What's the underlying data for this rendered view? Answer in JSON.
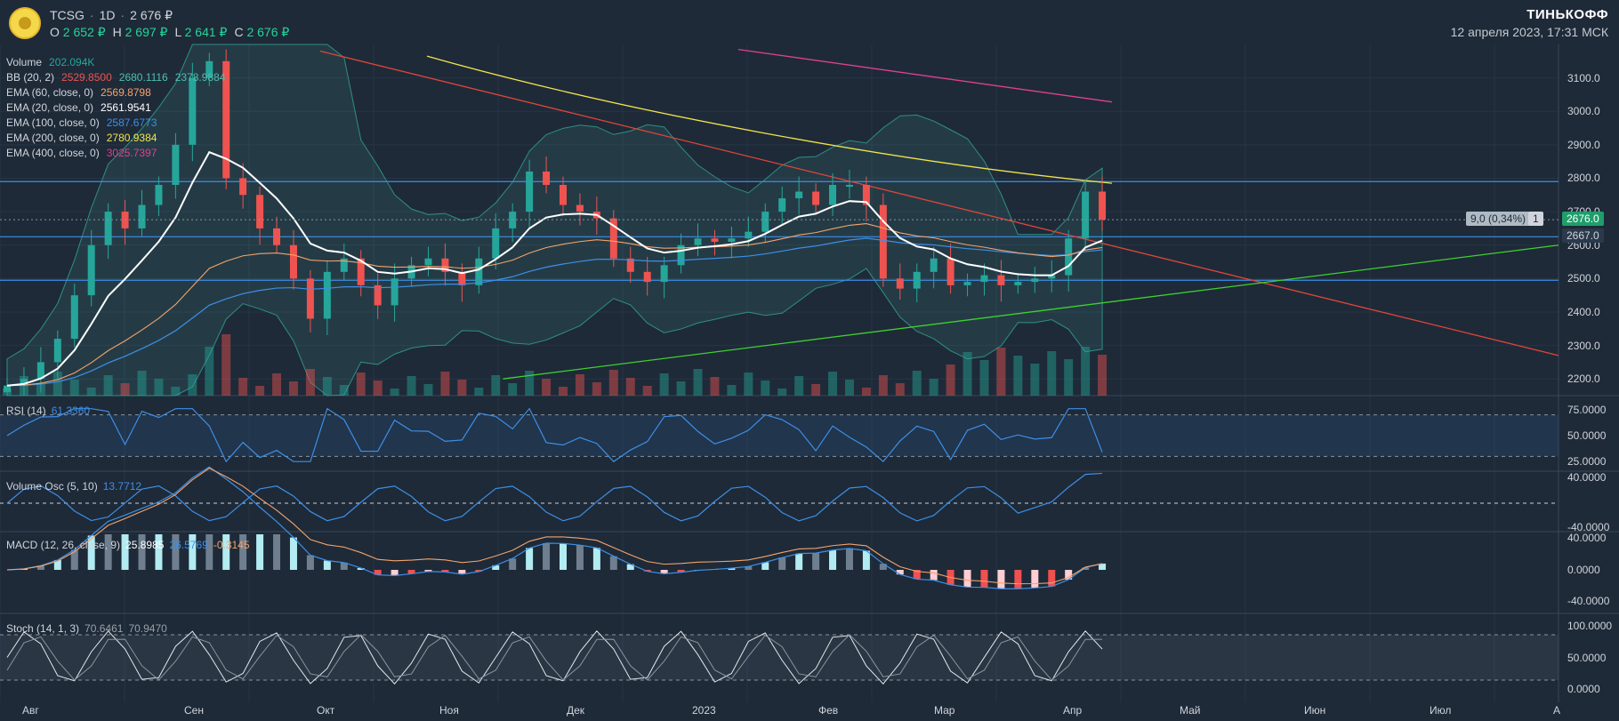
{
  "header": {
    "ticker": "TCSG",
    "interval": "1D",
    "last": "2 676 ₽",
    "ohlc": [
      {
        "k": "O",
        "v": "2 652 ₽"
      },
      {
        "k": "H",
        "v": "2 697 ₽"
      },
      {
        "k": "L",
        "v": "2 641 ₽"
      },
      {
        "k": "C",
        "v": "2 676 ₽"
      }
    ],
    "brand": "ТИНЬКОФФ",
    "date": "12 апреля 2023, 17:31 МСК"
  },
  "legend": [
    {
      "label": "Volume",
      "values": [
        "202.094K"
      ],
      "colors": [
        "#26a69a"
      ]
    },
    {
      "label": "BB (20, 2)",
      "values": [
        "2529.8500",
        "2680.1116",
        "2378.9884"
      ],
      "colors": [
        "#ef5350",
        "#4fbfb0",
        "#4fbfb0"
      ]
    },
    {
      "label": "EMA (60, close, 0)",
      "values": [
        "2569.8798"
      ],
      "colors": [
        "#f5a36b"
      ]
    },
    {
      "label": "EMA (20, close, 0)",
      "values": [
        "2561.9541"
      ],
      "colors": [
        "#ffffff"
      ]
    },
    {
      "label": "EMA (100, close, 0)",
      "values": [
        "2587.6773"
      ],
      "colors": [
        "#3d8fe6"
      ]
    },
    {
      "label": "EMA (200, close, 0)",
      "values": [
        "2780.9384"
      ],
      "colors": [
        "#f2e34c"
      ]
    },
    {
      "label": "EMA (400, close, 0)",
      "values": [
        "3025.7397"
      ],
      "colors": [
        "#e0408f"
      ]
    }
  ],
  "panes": {
    "rsi": {
      "label": "RSI (14)",
      "value": "61.3360",
      "color": "#3d8fe6"
    },
    "vosc": {
      "label": "Volume Osc (5, 10)",
      "value": "13.7712",
      "color": "#3d8fe6"
    },
    "macd": {
      "label": "MACD (12, 26, close, 9)",
      "values": [
        "25.8985",
        "26.5769",
        "-0.3145"
      ],
      "colors": [
        "#ffffff",
        "#3d8fe6",
        "#f5a36b"
      ]
    },
    "stoch": {
      "label": "Stoch (14, 1, 3)",
      "values": [
        "70.6461",
        "70.9470"
      ],
      "colors": [
        "#9aa0a8",
        "#9aa0a8"
      ]
    }
  },
  "price_tags": {
    "change": "9,0 (0,34%)",
    "count": "1",
    "last": "2676.0",
    "level": "2667.0"
  },
  "chart_data": {
    "type": "candlestick",
    "y_axis": {
      "range": [
        2150,
        3200
      ],
      "ticks": [
        2200,
        2300,
        2400,
        2500,
        2600,
        2700,
        2800,
        2900,
        3000,
        3100
      ],
      "tick_labels": [
        "2200.0",
        "2300.0",
        "2400.0",
        "2500.0",
        "2600.0",
        "2700.0",
        "2800.0",
        "2900.0",
        "3000.0",
        "3100.0"
      ]
    },
    "x_axis": {
      "labels": [
        "Авг",
        "Сен",
        "Окт",
        "Ноя",
        "Дек",
        "2023",
        "Фев",
        "Мар",
        "Апр",
        "Май",
        "Июн",
        "Июл",
        "А"
      ]
    },
    "close_series": [
      2180,
      2200,
      2250,
      2320,
      2450,
      2600,
      2700,
      2650,
      2720,
      2780,
      2900,
      3100,
      3150,
      2800,
      2750,
      2650,
      2600,
      2500,
      2380,
      2520,
      2560,
      2480,
      2420,
      2500,
      2540,
      2560,
      2520,
      2480,
      2560,
      2650,
      2700,
      2820,
      2780,
      2720,
      2700,
      2680,
      2560,
      2520,
      2490,
      2540,
      2600,
      2620,
      2610,
      2620,
      2640,
      2700,
      2740,
      2760,
      2720,
      2780,
      2780,
      2720,
      2500,
      2470,
      2520,
      2560,
      2480,
      2490,
      2510,
      2480,
      2490,
      2500,
      2510,
      2620,
      2760,
      2676
    ],
    "horizontal_levels": [
      2790,
      2625,
      2495
    ],
    "trendlines": [
      {
        "color": "#e0453a",
        "from": [
          0.0,
          3180
        ],
        "to": [
          1.0,
          2270
        ]
      },
      {
        "color": "#3fd12e",
        "from": [
          0.22,
          2200
        ],
        "to": [
          1.0,
          2600
        ]
      }
    ],
    "ema_values": {
      "ema200": 2780.9384,
      "ema400": 3025.7397,
      "ema20": 2561.9541
    },
    "rsi": {
      "range": [
        20,
        80
      ],
      "ticks": [
        "75.0000",
        "50.0000",
        "25.0000"
      ],
      "bands": [
        70,
        30
      ],
      "last": 61.336
    },
    "volume_osc": {
      "ticks": [
        "40.0000",
        "-40.0000"
      ]
    },
    "macd": {
      "ticks": [
        "40.0000",
        "0.0000",
        "-40.0000"
      ]
    },
    "stoch": {
      "ticks": [
        "100.0000",
        "50.0000",
        "0.0000"
      ],
      "bands": [
        80,
        20
      ]
    }
  }
}
